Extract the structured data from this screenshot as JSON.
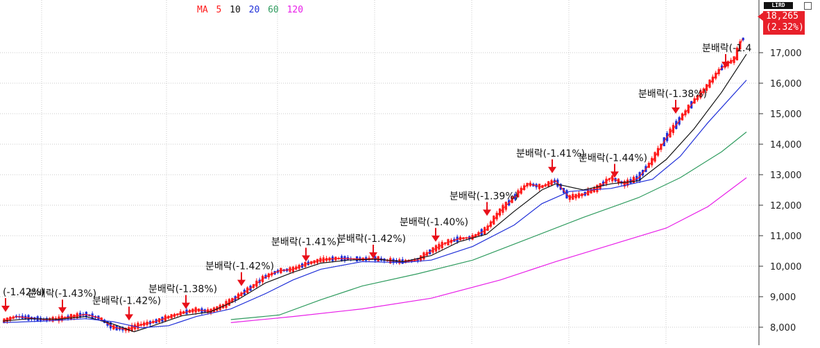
{
  "header": {
    "ma_label": "MA",
    "ma_periods": [
      {
        "label": "5",
        "color": "#ff1a1a"
      },
      {
        "label": "10",
        "color": "#111111"
      },
      {
        "label": "20",
        "color": "#1f2fd8"
      },
      {
        "label": "60",
        "color": "#2e9b5e"
      },
      {
        "label": "120",
        "color": "#e81ee8"
      }
    ],
    "corner_label": "LIRD"
  },
  "price_tag": {
    "price": "18,265",
    "change": "(2.32%)"
  },
  "colors": {
    "up": "#ff1a1a",
    "down": "#1f2fd8",
    "grid": "#c8c8c8",
    "marker": "#e8101a"
  },
  "chart_data": {
    "type": "candlestick",
    "y_axis": {
      "ticks": [
        "8,000",
        "9,000",
        "10,000",
        "11,000",
        "12,000",
        "13,000",
        "14,000",
        "15,000",
        "16,000",
        "17,000"
      ],
      "tick_values": [
        8000,
        9000,
        10000,
        11000,
        12000,
        13000,
        14000,
        15000,
        16000,
        17000
      ],
      "range": [
        7450,
        18450
      ],
      "side": "right"
    },
    "grid": true,
    "annotations": [
      {
        "label": "(-1.42%)",
        "price": 8500
      },
      {
        "label": "분배락(-1.43%)",
        "price": 8450
      },
      {
        "label": "분배락(-1.42%)",
        "price": 8220
      },
      {
        "label": "분배락(-1.38%)",
        "price": 8600
      },
      {
        "label": "분배락(-1.42%)",
        "price": 9350
      },
      {
        "label": "분배락(-1.41%)",
        "price": 10150
      },
      {
        "label": "분배락(-1.42%)",
        "price": 10250
      },
      {
        "label": "분배락(-1.40%)",
        "price": 10800
      },
      {
        "label": "분배락(-1.39%)",
        "price": 11650
      },
      {
        "label": "분배락(-1.41%)",
        "price": 13050
      },
      {
        "label": "분배락(-1.44%)",
        "price": 12900
      },
      {
        "label": "분배락(-1.38%)",
        "price": 15000
      },
      {
        "label": "분배락(-1.4",
        "price": 16500
      }
    ],
    "series": [
      {
        "name": "MA5",
        "values": [
          [
            0,
            8200
          ],
          [
            20,
            8350
          ],
          [
            40,
            8300
          ],
          [
            60,
            8250
          ],
          [
            80,
            8270
          ],
          [
            100,
            8350
          ],
          [
            120,
            8420
          ],
          [
            140,
            8300
          ],
          [
            160,
            8000
          ],
          [
            180,
            7920
          ],
          [
            200,
            8080
          ],
          [
            220,
            8180
          ],
          [
            240,
            8330
          ],
          [
            260,
            8470
          ],
          [
            280,
            8570
          ],
          [
            300,
            8520
          ],
          [
            320,
            8700
          ],
          [
            340,
            9000
          ],
          [
            360,
            9300
          ],
          [
            380,
            9650
          ],
          [
            400,
            9850
          ],
          [
            420,
            9900
          ],
          [
            440,
            10080
          ],
          [
            460,
            10200
          ],
          [
            480,
            10250
          ],
          [
            500,
            10250
          ],
          [
            520,
            10230
          ],
          [
            540,
            10250
          ],
          [
            560,
            10180
          ],
          [
            580,
            10150
          ],
          [
            600,
            10200
          ],
          [
            620,
            10500
          ],
          [
            640,
            10750
          ],
          [
            660,
            10900
          ],
          [
            680,
            10950
          ],
          [
            700,
            11200
          ],
          [
            720,
            11800
          ],
          [
            740,
            12250
          ],
          [
            760,
            12700
          ],
          [
            780,
            12600
          ],
          [
            800,
            12800
          ],
          [
            820,
            12250
          ],
          [
            840,
            12350
          ],
          [
            860,
            12550
          ],
          [
            880,
            12900
          ],
          [
            900,
            12700
          ],
          [
            920,
            12900
          ],
          [
            940,
            13450
          ],
          [
            960,
            14200
          ],
          [
            980,
            14800
          ],
          [
            1000,
            15400
          ],
          [
            1020,
            15900
          ],
          [
            1040,
            16500
          ],
          [
            1060,
            16800
          ],
          [
            1070,
            17450
          ]
        ]
      },
      {
        "name": "MA10",
        "values": [
          [
            0,
            8200
          ],
          [
            40,
            8280
          ],
          [
            80,
            8260
          ],
          [
            120,
            8350
          ],
          [
            160,
            8100
          ],
          [
            190,
            7850
          ],
          [
            220,
            8070
          ],
          [
            260,
            8380
          ],
          [
            300,
            8500
          ],
          [
            340,
            8900
          ],
          [
            380,
            9450
          ],
          [
            420,
            9800
          ],
          [
            460,
            10100
          ],
          [
            500,
            10200
          ],
          [
            540,
            10230
          ],
          [
            580,
            10150
          ],
          [
            620,
            10350
          ],
          [
            660,
            10800
          ],
          [
            700,
            11050
          ],
          [
            740,
            11800
          ],
          [
            780,
            12500
          ],
          [
            800,
            12700
          ],
          [
            840,
            12500
          ],
          [
            880,
            12700
          ],
          [
            920,
            12800
          ],
          [
            960,
            13500
          ],
          [
            1000,
            14500
          ],
          [
            1040,
            15700
          ],
          [
            1076,
            16950
          ]
        ]
      },
      {
        "name": "MA20",
        "values": [
          [
            0,
            8150
          ],
          [
            60,
            8200
          ],
          [
            120,
            8280
          ],
          [
            160,
            8180
          ],
          [
            200,
            7980
          ],
          [
            240,
            8050
          ],
          [
            280,
            8350
          ],
          [
            330,
            8600
          ],
          [
            380,
            9100
          ],
          [
            420,
            9550
          ],
          [
            460,
            9900
          ],
          [
            520,
            10150
          ],
          [
            580,
            10120
          ],
          [
            620,
            10200
          ],
          [
            680,
            10650
          ],
          [
            740,
            11350
          ],
          [
            780,
            12050
          ],
          [
            820,
            12450
          ],
          [
            880,
            12550
          ],
          [
            940,
            12850
          ],
          [
            980,
            13600
          ],
          [
            1020,
            14700
          ],
          [
            1076,
            16100
          ]
        ]
      },
      {
        "name": "MA60",
        "values": [
          [
            330,
            8250
          ],
          [
            400,
            8400
          ],
          [
            460,
            8900
          ],
          [
            520,
            9350
          ],
          [
            600,
            9750
          ],
          [
            680,
            10200
          ],
          [
            760,
            10900
          ],
          [
            840,
            11600
          ],
          [
            920,
            12250
          ],
          [
            980,
            12900
          ],
          [
            1040,
            13750
          ],
          [
            1076,
            14400
          ]
        ]
      },
      {
        "name": "MA120",
        "values": [
          [
            330,
            8150
          ],
          [
            420,
            8350
          ],
          [
            520,
            8600
          ],
          [
            620,
            8950
          ],
          [
            720,
            9550
          ],
          [
            800,
            10150
          ],
          [
            880,
            10700
          ],
          [
            960,
            11250
          ],
          [
            1020,
            11950
          ],
          [
            1076,
            12900
          ]
        ]
      }
    ]
  }
}
